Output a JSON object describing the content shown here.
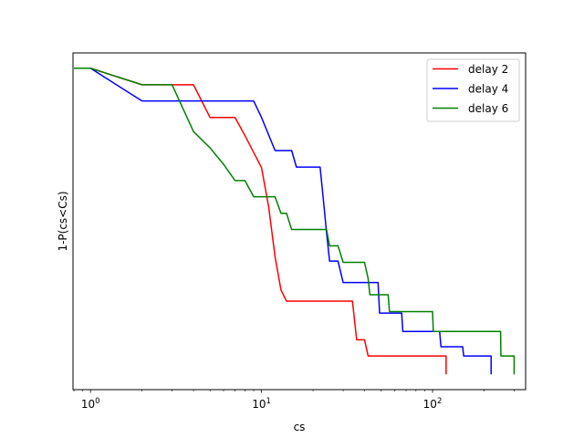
{
  "chart_data": {
    "type": "line",
    "title": "",
    "xlabel": "cs",
    "ylabel": "1-P(cs<Cs)",
    "xscale": "log",
    "xlim": [
      0.79,
      350
    ],
    "ylim": [
      -0.05,
      1.05
    ],
    "x_ticks": [
      {
        "value": 1,
        "label": "10^0",
        "base": "10",
        "exp": "0"
      },
      {
        "value": 10,
        "label": "10^1",
        "base": "10",
        "exp": "1"
      },
      {
        "value": 100,
        "label": "10^2",
        "base": "10",
        "exp": "2"
      }
    ],
    "y_ticks_visible": false,
    "grid": false,
    "legend": "top-right",
    "series": [
      {
        "name": "delay 2",
        "color": "#ff0000",
        "points": [
          [
            0.8,
            1.0
          ],
          [
            1.0,
            1.0
          ],
          [
            2.0,
            0.946
          ],
          [
            3.0,
            0.946
          ],
          [
            4.0,
            0.946
          ],
          [
            5.0,
            0.839
          ],
          [
            7.0,
            0.839
          ],
          [
            8.0,
            0.78
          ],
          [
            10.0,
            0.675
          ],
          [
            11.0,
            0.548
          ],
          [
            12.0,
            0.384
          ],
          [
            13.0,
            0.275
          ],
          [
            14.0,
            0.239
          ],
          [
            15.0,
            0.239
          ],
          [
            20.0,
            0.239
          ],
          [
            25.0,
            0.239
          ],
          [
            34.0,
            0.239
          ],
          [
            36.0,
            0.113
          ],
          [
            40.0,
            0.113
          ],
          [
            42.0,
            0.06
          ],
          [
            60.0,
            0.06
          ],
          [
            100.0,
            0.06
          ],
          [
            120.0,
            0.06
          ],
          [
            120.0,
            0.0
          ]
        ]
      },
      {
        "name": "delay 4",
        "color": "#0000ff",
        "points": [
          [
            0.8,
            1.0
          ],
          [
            1.0,
            1.0
          ],
          [
            2.0,
            0.893
          ],
          [
            3.0,
            0.893
          ],
          [
            5.0,
            0.893
          ],
          [
            9.0,
            0.893
          ],
          [
            10.0,
            0.839
          ],
          [
            12.0,
            0.731
          ],
          [
            14.0,
            0.731
          ],
          [
            15.0,
            0.731
          ],
          [
            16.0,
            0.677
          ],
          [
            20.0,
            0.677
          ],
          [
            22.0,
            0.677
          ],
          [
            23.0,
            0.57
          ],
          [
            24.0,
            0.463
          ],
          [
            25.0,
            0.37
          ],
          [
            28.0,
            0.37
          ],
          [
            30.0,
            0.3
          ],
          [
            35.0,
            0.3
          ],
          [
            48.0,
            0.3
          ],
          [
            49.0,
            0.2
          ],
          [
            60.0,
            0.2
          ],
          [
            66.0,
            0.2
          ],
          [
            67.0,
            0.14
          ],
          [
            100.0,
            0.14
          ],
          [
            110.0,
            0.14
          ],
          [
            112.0,
            0.09
          ],
          [
            140.0,
            0.09
          ],
          [
            150.0,
            0.09
          ],
          [
            152.0,
            0.06
          ],
          [
            210.0,
            0.06
          ],
          [
            220.0,
            0.06
          ],
          [
            220.0,
            0.0
          ]
        ]
      },
      {
        "name": "delay 6",
        "color": "#008000",
        "points": [
          [
            0.8,
            1.0
          ],
          [
            1.0,
            1.0
          ],
          [
            2.0,
            0.946
          ],
          [
            3.0,
            0.946
          ],
          [
            4.0,
            0.793
          ],
          [
            5.0,
            0.74
          ],
          [
            6.0,
            0.686
          ],
          [
            7.0,
            0.633
          ],
          [
            8.0,
            0.633
          ],
          [
            9.0,
            0.58
          ],
          [
            12.0,
            0.58
          ],
          [
            13.0,
            0.526
          ],
          [
            14.0,
            0.526
          ],
          [
            15.0,
            0.473
          ],
          [
            20.0,
            0.473
          ],
          [
            24.0,
            0.473
          ],
          [
            25.0,
            0.42
          ],
          [
            28.0,
            0.42
          ],
          [
            30.0,
            0.366
          ],
          [
            40.0,
            0.366
          ],
          [
            42.0,
            0.313
          ],
          [
            43.0,
            0.26
          ],
          [
            50.0,
            0.26
          ],
          [
            55.0,
            0.26
          ],
          [
            56.0,
            0.205
          ],
          [
            95.0,
            0.205
          ],
          [
            100.0,
            0.205
          ],
          [
            101.0,
            0.14
          ],
          [
            240.0,
            0.14
          ],
          [
            250.0,
            0.14
          ],
          [
            251.0,
            0.06
          ],
          [
            290.0,
            0.06
          ],
          [
            300.0,
            0.06
          ],
          [
            300.0,
            0.0
          ]
        ]
      }
    ]
  }
}
